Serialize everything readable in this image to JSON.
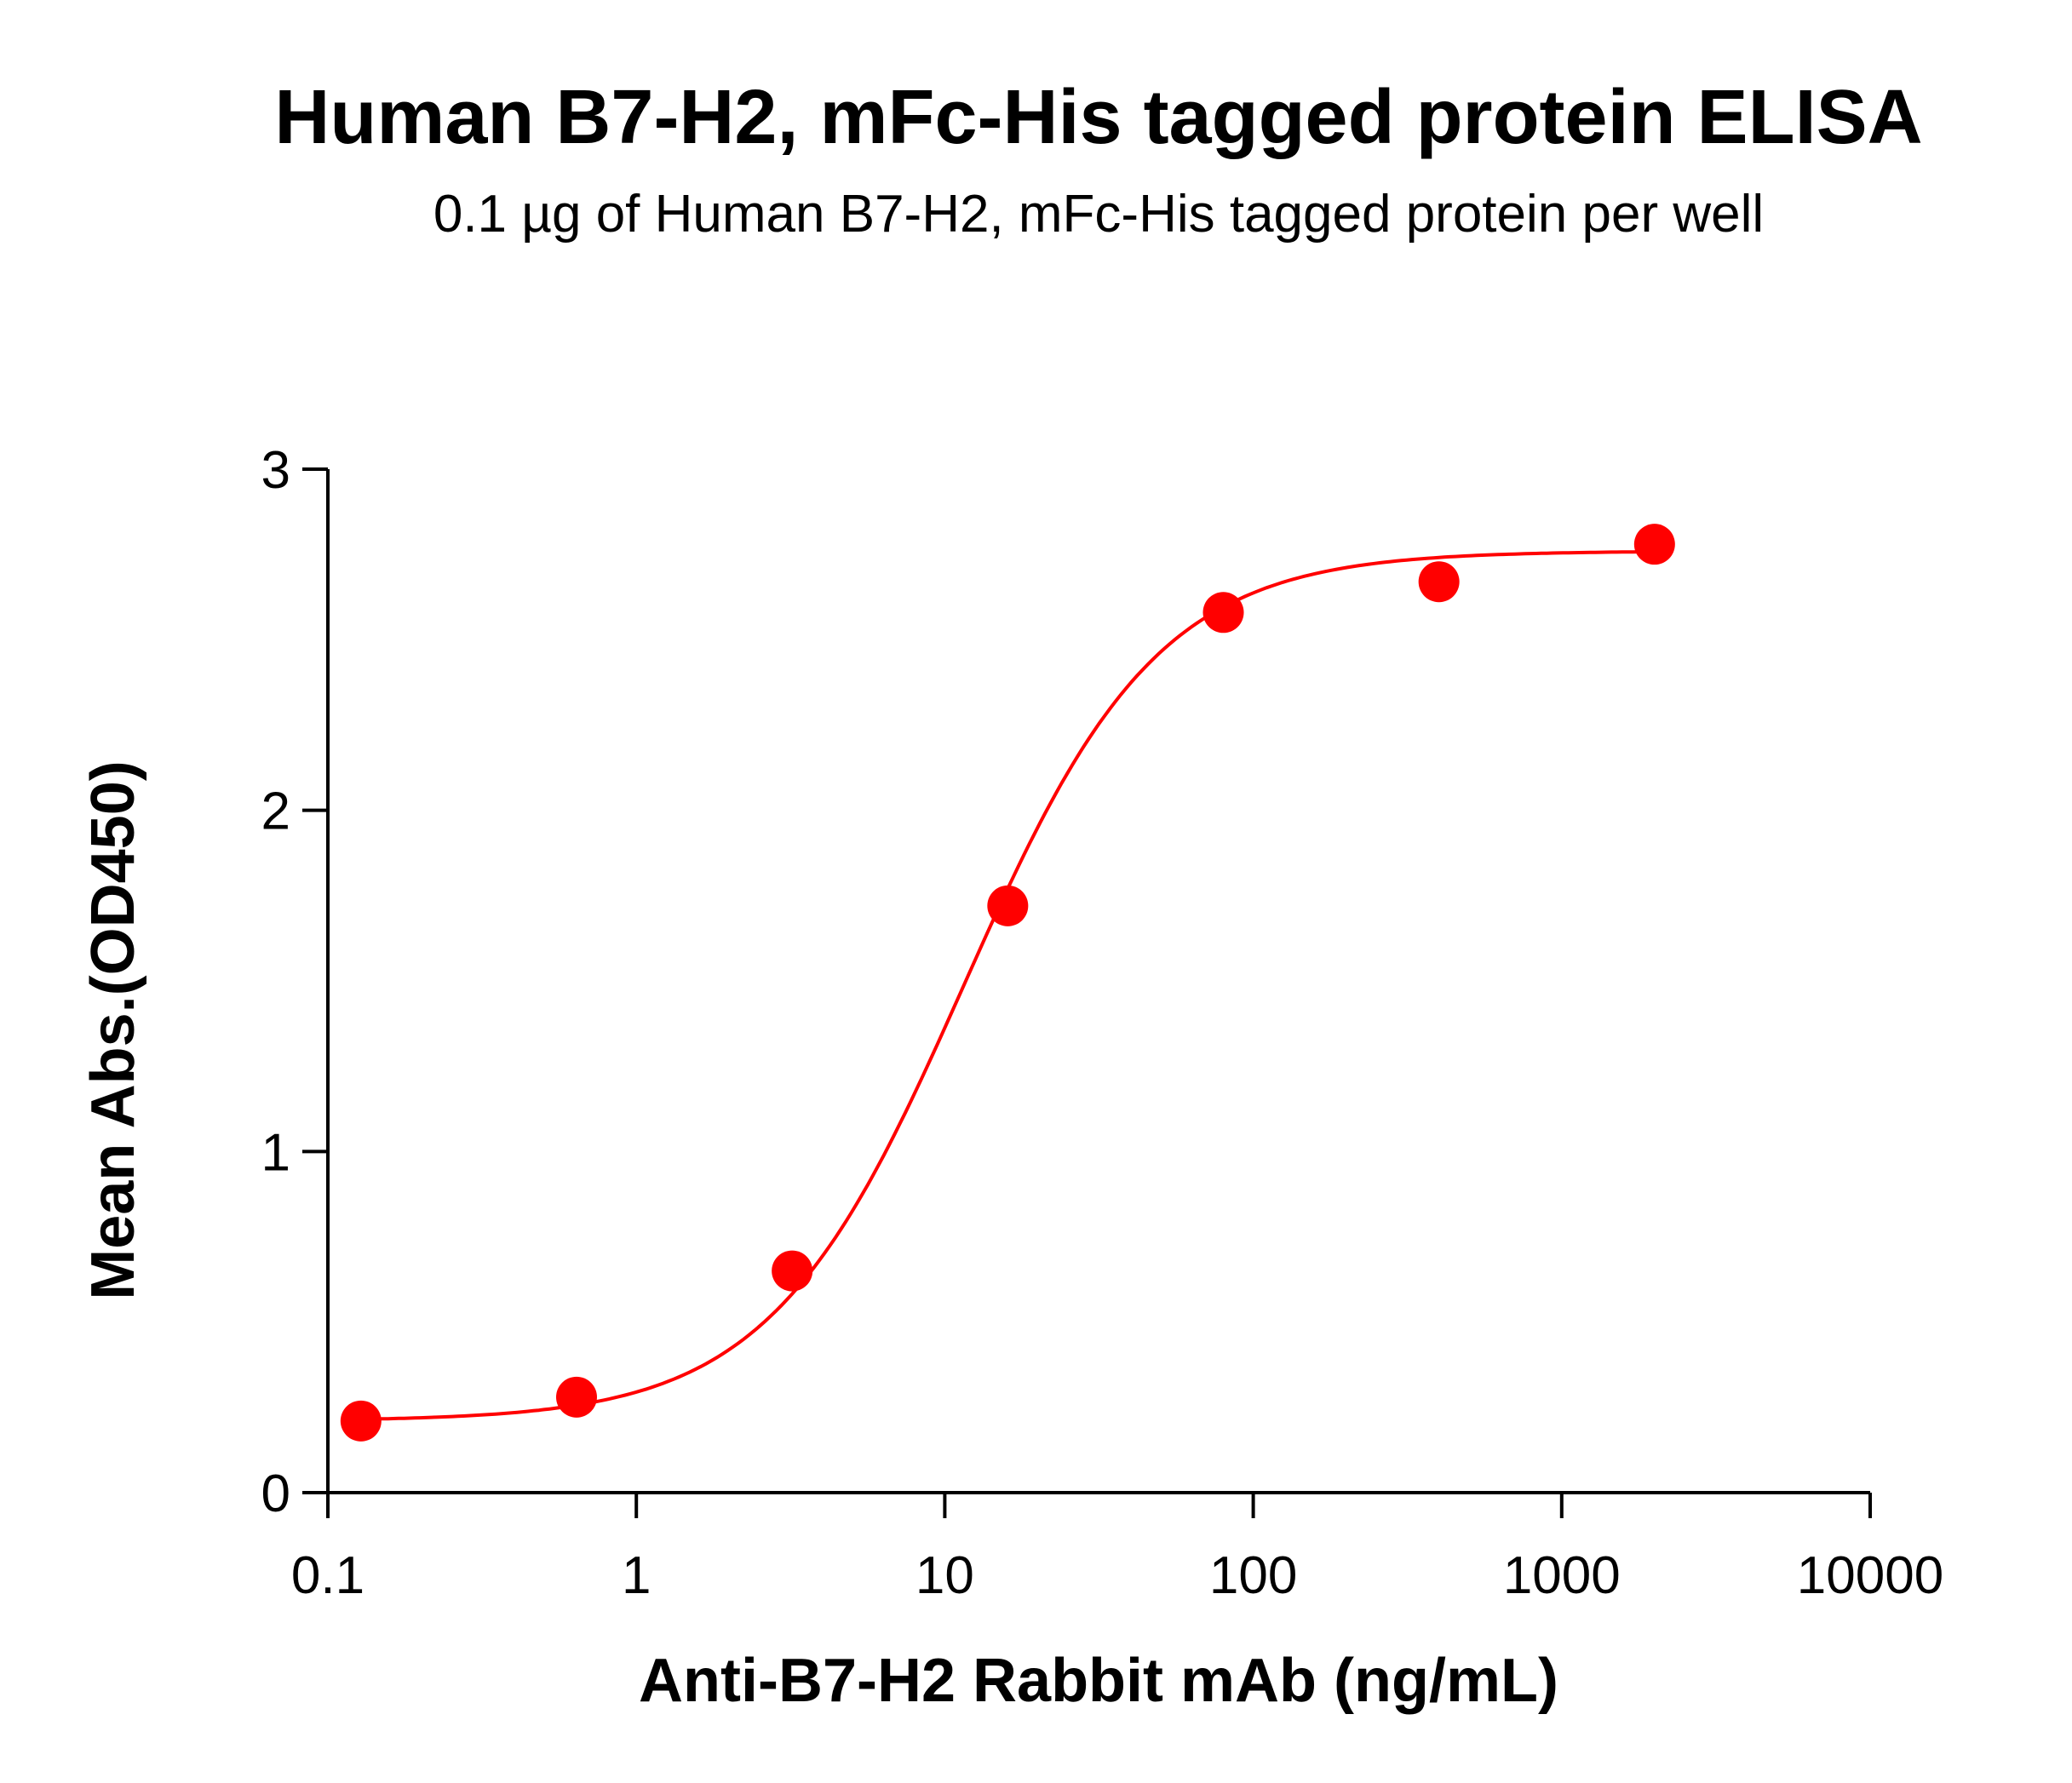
{
  "chart_data": {
    "type": "scatter",
    "title": "Human B7-H2, mFc-His tagged protein ELISA",
    "subtitle": "0.1 µg of Human B7-H2, mFc-His tagged protein per well",
    "xlabel": "Anti-B7-H2 Rabbit mAb (ng/mL)",
    "ylabel": "Mean Abs.(OD450)",
    "xscale": "log",
    "xlim": [
      0.1,
      10000
    ],
    "ylim": [
      0,
      3
    ],
    "x_ticks": [
      0.1,
      1,
      10,
      100,
      1000,
      10000
    ],
    "x_tick_labels": [
      "0.1",
      "1",
      "10",
      "100",
      "1000",
      "10000"
    ],
    "y_ticks": [
      0,
      1,
      2,
      3
    ],
    "y_tick_labels": [
      "0",
      "1",
      "2",
      "3"
    ],
    "grid": false,
    "legend": "none",
    "series": [
      {
        "color": "#ff0000",
        "x": [
          0.128,
          0.64,
          3.2,
          16,
          80,
          400,
          2000
        ],
        "y": [
          0.21,
          0.28,
          0.65,
          1.72,
          2.58,
          2.67,
          2.78
        ],
        "fit": "4PL sigmoidal curve"
      }
    ]
  }
}
